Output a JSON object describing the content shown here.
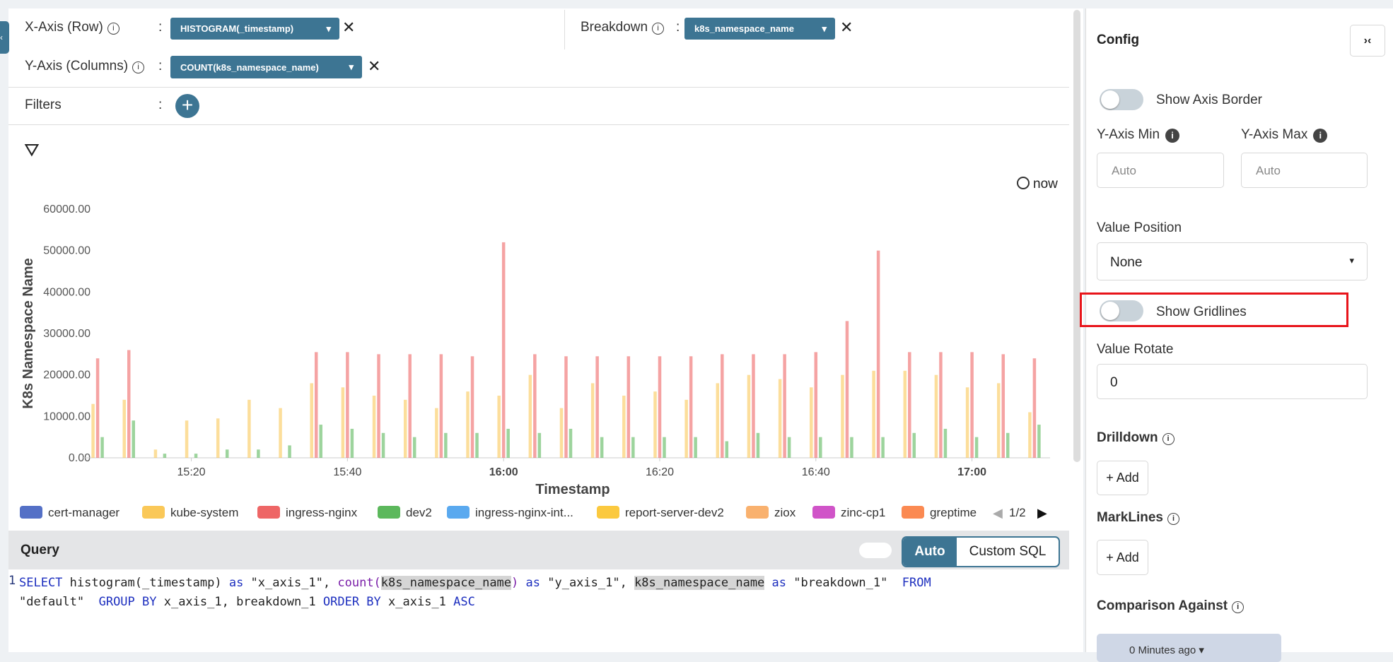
{
  "builder": {
    "x_axis_label": "X-Axis (Row)",
    "x_axis_field": "HISTOGRAM(_timestamp)",
    "breakdown_label": "Breakdown",
    "breakdown_field": "k8s_namespace_name",
    "y_axis_label": "Y-Axis (Columns)",
    "y_axis_field": "COUNT(k8s_namespace_name)",
    "filters_label": "Filters",
    "separator": ":"
  },
  "now_label": "now",
  "chart_data": {
    "type": "bar",
    "x_title": "Timestamp",
    "y_title": "K8s Namespace Name",
    "x": [
      "15:08",
      "15:12",
      "15:16",
      "15:20",
      "15:24",
      "15:28",
      "15:32",
      "15:36",
      "15:40",
      "15:44",
      "15:48",
      "15:52",
      "15:56",
      "16:00",
      "16:04",
      "16:08",
      "16:12",
      "16:16",
      "16:20",
      "16:24",
      "16:28",
      "16:32",
      "16:36",
      "16:40",
      "16:44",
      "16:48",
      "16:52",
      "16:56",
      "17:00",
      "17:04",
      "17:08"
    ],
    "xlim": [
      "15:06",
      "17:10"
    ],
    "xticks": [
      "15:20",
      "15:40",
      "16:00",
      "16:20",
      "16:40",
      "17:00"
    ],
    "ylim": [
      0,
      60000
    ],
    "yticks": [
      {
        "value": 0,
        "label": "0.00"
      },
      {
        "value": 10000,
        "label": "10000.00"
      },
      {
        "value": 20000,
        "label": "20000.00"
      },
      {
        "value": 30000,
        "label": "30000.00"
      },
      {
        "value": 40000,
        "label": "40000.00"
      },
      {
        "value": 50000,
        "label": "50000.00"
      },
      {
        "value": 60000,
        "label": "60000.00"
      }
    ],
    "grid": false,
    "series": [
      {
        "name": "cert-manager",
        "color": "#5470c6"
      },
      {
        "name": "kube-system",
        "color": "#fac858",
        "values": [
          13000,
          14000,
          2000,
          9000,
          9500,
          14000,
          12000,
          18000,
          17000,
          15000,
          14000,
          12000,
          16000,
          15000,
          20000,
          12000,
          18000,
          15000,
          16000,
          14000,
          18000,
          20000,
          19000,
          17000,
          20000,
          21000,
          21000,
          20000,
          17000,
          18000,
          11000
        ]
      },
      {
        "name": "ingress-nginx",
        "color": "#ee6666",
        "values": [
          24000,
          26000,
          0,
          0,
          0,
          0,
          0,
          25500,
          25500,
          25000,
          25000,
          25000,
          24500,
          52000,
          25000,
          24500,
          24500,
          24500,
          24500,
          24500,
          25000,
          25000,
          25000,
          25500,
          33000,
          50000,
          25500,
          25500,
          25500,
          25000,
          24000
        ]
      },
      {
        "name": "dev2",
        "color": "#5cb85c",
        "values": [
          5000,
          9000,
          1000,
          1000,
          2000,
          2000,
          3000,
          8000,
          7000,
          6000,
          5000,
          6000,
          6000,
          7000,
          6000,
          7000,
          5000,
          5000,
          5000,
          5000,
          4000,
          6000,
          5000,
          5000,
          5000,
          5000,
          6000,
          7000,
          5000,
          6000,
          8000
        ]
      },
      {
        "name": "ingress-nginx-int...",
        "color": "#5aa9ef"
      },
      {
        "name": "report-server-dev2",
        "color": "#fbc93f"
      },
      {
        "name": "ziox",
        "color": "#f9b16e"
      },
      {
        "name": "zinc-cp1",
        "color": "#d054c8"
      },
      {
        "name": "greptime",
        "color": "#fb8a52"
      }
    ],
    "legend_page": "1/2"
  },
  "query": {
    "title": "Query",
    "mode_auto": "Auto",
    "mode_custom": "Custom SQL",
    "line_number": 1,
    "lines": [
      [
        {
          "text": "SELECT ",
          "style": "kw"
        },
        {
          "text": "histogram(_timestamp) ",
          "style": "plain"
        },
        {
          "text": "as ",
          "style": "kw"
        },
        {
          "text": "\"x_axis_1\", ",
          "style": "plain"
        },
        {
          "text": "count(",
          "style": "fn"
        },
        {
          "text": "k8s_namespace_name",
          "style": "hl"
        },
        {
          "text": ") ",
          "style": "fn"
        },
        {
          "text": "as ",
          "style": "kw"
        },
        {
          "text": "\"y_axis_1\", ",
          "style": "plain"
        },
        {
          "text": "k8s_namespace_name",
          "style": "hl"
        },
        {
          "text": " as ",
          "style": "kw"
        },
        {
          "text": "\"breakdown_1\"  ",
          "style": "plain"
        },
        {
          "text": "FROM",
          "style": "kw"
        }
      ],
      [
        {
          "text": "\"default\"  ",
          "style": "plain"
        },
        {
          "text": "GROUP BY ",
          "style": "kw"
        },
        {
          "text": "x_axis_1, breakdown_1 ",
          "style": "plain"
        },
        {
          "text": "ORDER BY ",
          "style": "kw"
        },
        {
          "text": "x_axis_1 ",
          "style": "plain"
        },
        {
          "text": "ASC",
          "style": "kw"
        }
      ]
    ]
  },
  "config": {
    "title": "Config",
    "show_axis_border": "Show Axis Border",
    "y_min_label": "Y-Axis Min",
    "y_max_label": "Y-Axis Max",
    "y_min_placeholder": "Auto",
    "y_max_placeholder": "Auto",
    "value_position_label": "Value Position",
    "value_position": "None",
    "show_gridlines": "Show Gridlines",
    "value_rotate_label": "Value Rotate",
    "value_rotate": 0,
    "drilldown_label": "Drilldown",
    "add_drilldown": "+ Add",
    "marklines_label": "MarkLines",
    "add_markline": "+ Add",
    "comparison_label": "Comparison Against",
    "comparison_value": "0 Minutes ago"
  }
}
